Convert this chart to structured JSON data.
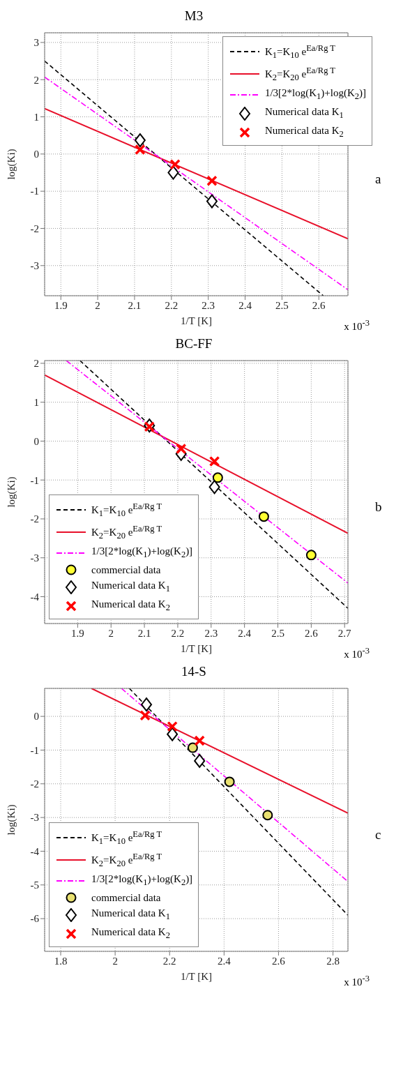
{
  "chart_data": [
    {
      "type": "line",
      "title": "M3",
      "xlabel": "1/T [K]",
      "ylabel": "log(Ki)",
      "xlim": [
        1.856,
        2.679
      ],
      "ylim": [
        -3.81,
        3.26
      ],
      "xticks": [
        1.9,
        2,
        2.1,
        2.2,
        2.3,
        2.4,
        2.5,
        2.6
      ],
      "yticks": [
        -3,
        -2,
        -1,
        0,
        1,
        2,
        3
      ],
      "grid": true,
      "legend": "top right",
      "annotations": [
        "x 10$^{-3}$",
        "a"
      ],
      "series": [
        {
          "name": "K$_{1}$=K$_{10}$ e$^{Ea/Rg T}$",
          "color": "#000000",
          "line_style": "dashed",
          "x": [
            1.856,
            2.612
          ],
          "values": [
            2.5,
            -3.81
          ]
        },
        {
          "name": "K$_{2}$=K$_{20}$ e$^{Ea/Rg T}$",
          "color": "#e8102a",
          "line_style": "solid",
          "x": [
            1.856,
            2.679
          ],
          "values": [
            1.22,
            -2.28
          ]
        },
        {
          "name": "1/3[2*log(K$_{1}$)+log(K$_{2}$)]",
          "color": "#ff00ff",
          "line_style": "dashdot",
          "x": [
            1.856,
            2.679
          ],
          "values": [
            2.07,
            -3.65
          ]
        },
        {
          "type": "scatter",
          "name": "Numerical data K$_{1}$",
          "color": "#000000",
          "marker": "diamond",
          "x": [
            2.115,
            2.205,
            2.31
          ],
          "values": [
            0.37,
            -0.5,
            -1.27
          ]
        },
        {
          "type": "scatter",
          "name": "Numerical data K$_{2}$",
          "color": "#ff0000",
          "marker": "cross",
          "x": [
            2.115,
            2.21,
            2.31
          ],
          "values": [
            0.12,
            -0.28,
            -0.72
          ]
        }
      ]
    },
    {
      "type": "line",
      "title": "BC-FF",
      "xlabel": "1/T [K]",
      "ylabel": "log(Ki)",
      "xlim": [
        1.801,
        2.71
      ],
      "ylim": [
        -4.69,
        2.07
      ],
      "xticks": [
        1.9,
        2,
        2.1,
        2.2,
        2.3,
        2.4,
        2.5,
        2.6,
        2.7
      ],
      "yticks": [
        -4,
        -3,
        -2,
        -1,
        0,
        1,
        2
      ],
      "grid": true,
      "legend": "bottom left",
      "annotations": [
        "x 10$^{-3}$",
        "b"
      ],
      "series": [
        {
          "name": "K$_{1}$=K$_{10}$ e$^{Ea/Rg T}$",
          "color": "#000000",
          "line_style": "dashed",
          "x": [
            1.907,
            2.71
          ],
          "values": [
            2.07,
            -4.3
          ]
        },
        {
          "name": "K$_{2}$=K$_{20}$ e$^{Ea/Rg T}$",
          "color": "#e8102a",
          "line_style": "solid",
          "x": [
            1.801,
            2.71
          ],
          "values": [
            1.7,
            -2.37
          ]
        },
        {
          "name": "1/3[2*log(K$_{1}$)+log(K$_{2}$)]",
          "color": "#ff00ff",
          "line_style": "dashdot",
          "x": [
            1.866,
            2.71
          ],
          "values": [
            2.07,
            -3.65
          ]
        },
        {
          "type": "scatter",
          "name": "commercial data",
          "color": "#ffff33",
          "marker": "circle",
          "x": [
            2.32,
            2.458,
            2.6
          ],
          "values": [
            -0.94,
            -1.94,
            -2.93
          ]
        },
        {
          "type": "scatter",
          "name": "Numerical data K$_{1}$",
          "color": "#000000",
          "marker": "diamond",
          "x": [
            2.115,
            2.21,
            2.31
          ],
          "values": [
            0.4,
            -0.33,
            -1.18
          ]
        },
        {
          "type": "scatter",
          "name": "Numerical data K$_{2}$",
          "color": "#ff0000",
          "marker": "cross",
          "x": [
            2.115,
            2.21,
            2.31
          ],
          "values": [
            0.37,
            -0.2,
            -0.52
          ]
        }
      ]
    },
    {
      "type": "line",
      "title": "14-S",
      "xlabel": "1/T [K]",
      "ylabel": "log(Ki)",
      "xlim": [
        1.741,
        2.855
      ],
      "ylim": [
        -6.97,
        0.83
      ],
      "xticks": [
        1.8,
        2,
        2.2,
        2.4,
        2.6,
        2.8
      ],
      "yticks": [
        -6,
        -5,
        -4,
        -3,
        -2,
        -1,
        0
      ],
      "grid": true,
      "legend": "bottom left",
      "annotations": [
        "x 10$^{-3}$",
        "c"
      ],
      "series": [
        {
          "name": "K$_{1}$=K$_{10}$ e$^{Ea/Rg T}$",
          "color": "#000000",
          "line_style": "dashed",
          "x": [
            2.052,
            2.855
          ],
          "values": [
            0.83,
            -5.9
          ]
        },
        {
          "name": "K$_{2}$=K$_{20}$ e$^{Ea/Rg T}$",
          "color": "#e8102a",
          "line_style": "solid",
          "x": [
            1.913,
            2.855
          ],
          "values": [
            0.83,
            -2.87
          ]
        },
        {
          "name": "1/3[2*log(K$_{1}$)+log(K$_{2}$)]",
          "color": "#ff00ff",
          "line_style": "dashdot",
          "x": [
            2.023,
            2.855
          ],
          "values": [
            0.83,
            -4.9
          ]
        },
        {
          "type": "scatter",
          "name": "commercial data",
          "color": "#e8e070",
          "marker": "circle",
          "x": [
            2.285,
            2.42,
            2.56
          ],
          "values": [
            -0.93,
            -1.94,
            -2.93
          ]
        },
        {
          "type": "scatter",
          "name": "Numerical data K$_{1}$",
          "color": "#000000",
          "marker": "diamond",
          "x": [
            2.115,
            2.21,
            2.31
          ],
          "values": [
            0.35,
            -0.53,
            -1.32
          ]
        },
        {
          "type": "scatter",
          "name": "Numerical data K$_{2}$",
          "color": "#ff0000",
          "marker": "cross",
          "x": [
            2.11,
            2.21,
            2.31
          ],
          "values": [
            0.03,
            -0.3,
            -0.72
          ]
        }
      ]
    }
  ]
}
